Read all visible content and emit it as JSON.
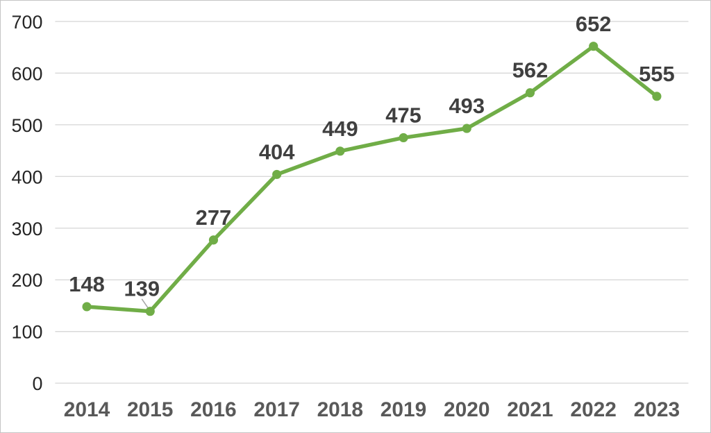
{
  "chart_data": {
    "type": "line",
    "title": "",
    "xlabel": "",
    "ylabel": "",
    "categories": [
      "2014",
      "2015",
      "2016",
      "2017",
      "2018",
      "2019",
      "2020",
      "2021",
      "2022",
      "2023"
    ],
    "series": [
      {
        "name": "series-1",
        "values": [
          148,
          139,
          277,
          404,
          449,
          475,
          493,
          562,
          652,
          555
        ]
      }
    ],
    "data_labels": [
      "148",
      "139",
      "277",
      "404",
      "449",
      "475",
      "493",
      "562",
      "652",
      "555"
    ],
    "label_overrides": [
      {
        "index": 1,
        "dx": -12,
        "dy": 0,
        "leader_line": true
      }
    ],
    "y_axis": {
      "min": 0,
      "max": 700,
      "step": 100,
      "tick_labels": [
        "0",
        "100",
        "200",
        "300",
        "400",
        "500",
        "600",
        "700"
      ]
    },
    "grid": true,
    "legend_position": "none",
    "colors": {
      "line": "#70ad47",
      "marker": "#70ad47",
      "data_label": "#3f3f3f",
      "x_tick_label": "#595959",
      "y_tick_label": "#262626",
      "gridline": "#d9d9d9",
      "leader_line": "#a6a6a6",
      "background": "#ffffff",
      "frame_border": "#c4c4c4"
    }
  }
}
